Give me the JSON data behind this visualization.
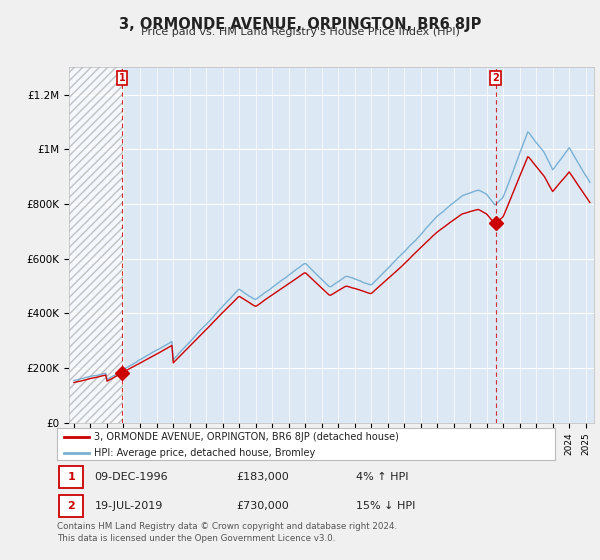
{
  "title": "3, ORMONDE AVENUE, ORPINGTON, BR6 8JP",
  "subtitle": "Price paid vs. HM Land Registry's House Price Index (HPI)",
  "bg_color": "#f0f0f0",
  "plot_bg_color": "#dce9f5",
  "hpi_color": "#7ab0d4",
  "price_color": "#cc0000",
  "ylim": [
    0,
    1300000
  ],
  "yticks": [
    0,
    200000,
    400000,
    600000,
    800000,
    1000000,
    1200000
  ],
  "ytick_labels": [
    "£0",
    "£200K",
    "£400K",
    "£600K",
    "£800K",
    "£1M",
    "£1.2M"
  ],
  "sale1_date": "09-DEC-1996",
  "sale1_price": 183000,
  "sale1_label": "4% ↑ HPI",
  "sale1_x": 1996.92,
  "sale2_date": "19-JUL-2019",
  "sale2_price": 730000,
  "sale2_label": "15% ↓ HPI",
  "sale2_x": 2019.54,
  "legend_label1": "3, ORMONDE AVENUE, ORPINGTON, BR6 8JP (detached house)",
  "legend_label2": "HPI: Average price, detached house, Bromley",
  "footer": "Contains HM Land Registry data © Crown copyright and database right 2024.\nThis data is licensed under the Open Government Licence v3.0.",
  "xmin": 1993.7,
  "xmax": 2025.5,
  "hatch_end": 1997.0
}
